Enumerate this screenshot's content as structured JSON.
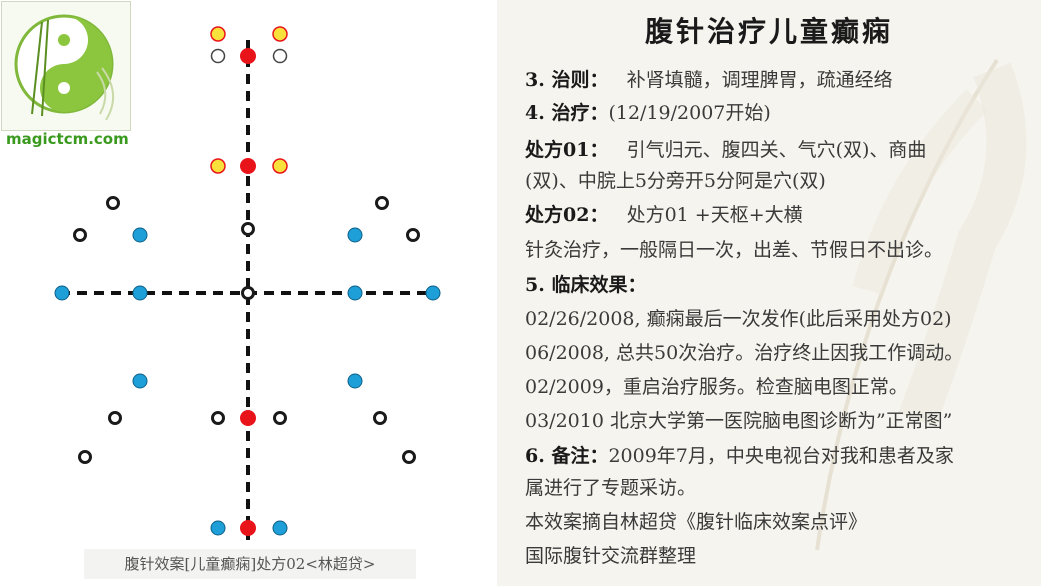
{
  "brand": "magictcm.com",
  "caption": "腹针效案[儿童癫痫]处方02<林超贷>",
  "title": "腹针治疗儿童癫痫",
  "colors": {
    "red": "#e8141a",
    "blue": "#1e9fd8",
    "yellow": "#f7e13a",
    "dark": "#1a1a1a",
    "panel_bg": "#f6f4ee"
  },
  "sections": {
    "l1_head": "3. 治则：",
    "l1_text": "补肾填髓，调理脾胃，疏通经络",
    "l2_head": "4. 治疗：",
    "l2_text": "(12/19/2007开始)",
    "l3_head": "处方01：",
    "l3_text": "引气归元、腹四关、气穴(双)、商曲",
    "l4_text": "(双)、中脘上5分旁开5分阿是穴(双)",
    "l5_head": "处方02：",
    "l5_text": "处方01 +天枢+大横",
    "l6_text": "针灸治疗，一般隔日一次，出差、节假日不出诊。",
    "l7_head": "5. 临床效果：",
    "l8_text": "02/26/2008, 癫痫最后一次发作(此后采用处方02)",
    "l9_text": "06/2008, 总共50次治疗。治疗终止因我工作调动。",
    "l10_text": "02/2009，重启治疗服务。检查脑电图正常。",
    "l11_text": "03/2010 北京大学第一医院脑电图诊断为”正常图”",
    "l12_head": "6. 备注：",
    "l12_text": "2009年7月，中央电视台对我和患者及家",
    "l13_text": "属进行了专题采访。",
    "l14_text": "本效案摘自林超贷《腹针临床效案点评》",
    "l15_text": "国际腹针交流群整理"
  }
}
